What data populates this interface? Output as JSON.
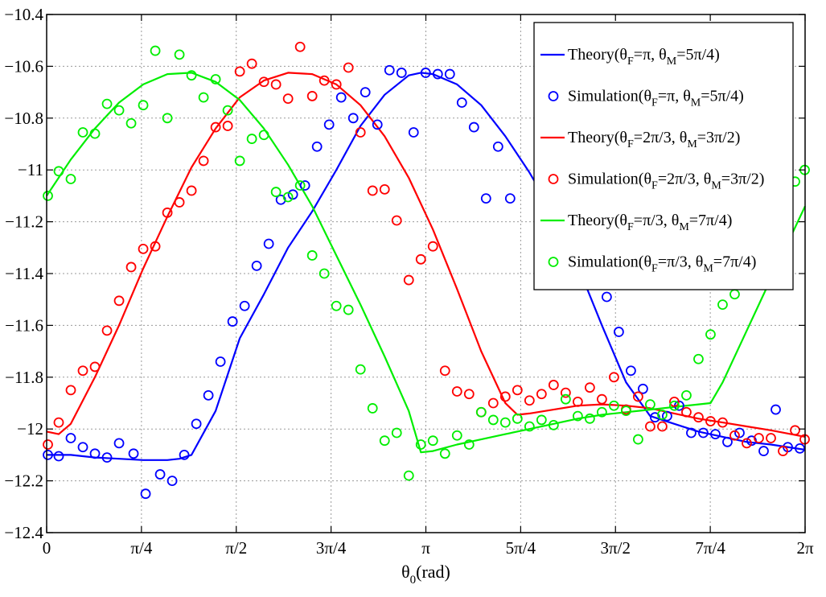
{
  "chart_data": {
    "type": "line",
    "title": "",
    "xlabel": "θ",
    "xlabel_sub": "0",
    "xlabel_unit": "(rad)",
    "ylabel": "",
    "xlim": [
      0,
      6.2832
    ],
    "ylim": [
      -12.4,
      -10.4
    ],
    "grid": true,
    "legend_position": "top-right",
    "x_ticks": [
      {
        "value": 0,
        "label": "0"
      },
      {
        "value": 0.7854,
        "label": "π/4"
      },
      {
        "value": 1.5708,
        "label": "π/2"
      },
      {
        "value": 2.3562,
        "label": "3π/4"
      },
      {
        "value": 3.1416,
        "label": "π"
      },
      {
        "value": 3.927,
        "label": "5π/4"
      },
      {
        "value": 4.7124,
        "label": "3π/2"
      },
      {
        "value": 5.4978,
        "label": "7π/4"
      },
      {
        "value": 6.2832,
        "label": "2π"
      }
    ],
    "y_ticks": [
      {
        "value": -10.4,
        "label": "−10.4"
      },
      {
        "value": -10.6,
        "label": "−10.6"
      },
      {
        "value": -10.8,
        "label": "−10.8"
      },
      {
        "value": -11.0,
        "label": "−11"
      },
      {
        "value": -11.2,
        "label": "−11.2"
      },
      {
        "value": -11.4,
        "label": "−11.4"
      },
      {
        "value": -11.6,
        "label": "−11.6"
      },
      {
        "value": -11.8,
        "label": "−11.8"
      },
      {
        "value": -12.0,
        "label": "−12"
      },
      {
        "value": -12.2,
        "label": "−12.2"
      },
      {
        "value": -12.4,
        "label": "−12.4"
      }
    ],
    "colors": {
      "blue": "#0000ff",
      "red": "#ff0000",
      "green": "#00ee00"
    },
    "series": [
      {
        "name": "Theory(θF=π, θM=5π/4)",
        "legend": {
          "pre": "Theory(θ",
          "s1": "F",
          "mid": "=π, θ",
          "s2": "M",
          "post": "=5π/4)"
        },
        "kind": "line",
        "color": "#0000ff",
        "x": [
          0,
          0.2,
          0.4,
          0.6,
          0.8,
          1.0,
          1.1,
          1.2,
          1.4,
          1.6,
          1.8,
          2.0,
          2.2,
          2.4,
          2.6,
          2.8,
          3.0,
          3.1,
          3.2,
          3.4,
          3.6,
          3.8,
          4.0,
          4.2,
          4.4,
          4.6,
          4.8,
          5.0,
          5.2,
          5.4,
          5.6,
          5.8,
          6.0,
          6.2832
        ],
        "y": [
          -12.1,
          -12.1,
          -12.11,
          -12.115,
          -12.12,
          -12.12,
          -12.115,
          -12.1,
          -11.93,
          -11.65,
          -11.48,
          -11.3,
          -11.16,
          -11.0,
          -10.83,
          -10.71,
          -10.635,
          -10.625,
          -10.63,
          -10.67,
          -10.75,
          -10.87,
          -11.01,
          -11.17,
          -11.37,
          -11.6,
          -11.82,
          -11.95,
          -11.98,
          -12.01,
          -12.03,
          -12.05,
          -12.06,
          -12.08
        ]
      },
      {
        "name": "Simulation(θF=π, θM=5π/4)",
        "legend": {
          "pre": "Simulation(θ",
          "s1": "F",
          "mid": "=π, θ",
          "s2": "M",
          "post": "=5π/4)"
        },
        "kind": "scatter",
        "color": "#0000ff",
        "x": [
          0.01,
          0.1,
          0.2,
          0.3,
          0.4,
          0.5,
          0.6,
          0.72,
          0.82,
          0.94,
          1.04,
          1.14,
          1.24,
          1.34,
          1.44,
          1.54,
          1.64,
          1.74,
          1.84,
          1.94,
          2.04,
          2.14,
          2.24,
          2.34,
          2.44,
          2.54,
          2.64,
          2.74,
          2.84,
          2.94,
          3.04,
          3.14,
          3.24,
          3.34,
          3.44,
          3.54,
          3.64,
          3.74,
          3.84,
          4.64,
          4.74,
          4.84,
          4.94,
          5.04,
          5.14,
          5.24,
          5.34,
          5.44,
          5.54,
          5.64,
          5.74,
          5.84,
          5.94,
          6.04,
          6.14,
          6.24
        ],
        "y": [
          -12.1,
          -12.105,
          -12.035,
          -12.07,
          -12.095,
          -12.11,
          -12.055,
          -12.095,
          -12.25,
          -12.175,
          -12.2,
          -12.1,
          -11.98,
          -11.87,
          -11.74,
          -11.585,
          -11.525,
          -11.37,
          -11.285,
          -11.115,
          -11.095,
          -11.06,
          -10.91,
          -10.825,
          -10.72,
          -10.8,
          -10.7,
          -10.825,
          -10.615,
          -10.625,
          -10.855,
          -10.625,
          -10.63,
          -10.63,
          -10.74,
          -10.835,
          -11.11,
          -10.91,
          -11.11,
          -11.49,
          -11.625,
          -11.775,
          -11.845,
          -11.955,
          -11.95,
          -11.91,
          -12.015,
          -12.015,
          -12.02,
          -12.05,
          -12.015,
          -12.045,
          -12.085,
          -11.925,
          -12.07,
          -12.075
        ]
      },
      {
        "name": "Theory(θF=2π/3, θM=3π/2)",
        "legend": {
          "pre": "Theory(θ",
          "s1": "F",
          "mid": "=2π/3, θ",
          "s2": "M",
          "post": "=3π/2)"
        },
        "kind": "line",
        "color": "#ff0000",
        "x": [
          0,
          0.1,
          0.2,
          0.4,
          0.6,
          0.8,
          1.0,
          1.2,
          1.4,
          1.6,
          1.8,
          2.0,
          2.2,
          2.4,
          2.6,
          2.8,
          3.0,
          3.2,
          3.4,
          3.6,
          3.8,
          3.9,
          4.0,
          4.2,
          4.4,
          4.6,
          4.8,
          5.0,
          5.2,
          5.4,
          5.6,
          5.8,
          6.0,
          6.2832
        ],
        "y": [
          -12.01,
          -12.02,
          -11.98,
          -11.8,
          -11.6,
          -11.38,
          -11.18,
          -10.99,
          -10.84,
          -10.72,
          -10.655,
          -10.625,
          -10.63,
          -10.67,
          -10.75,
          -10.87,
          -11.03,
          -11.23,
          -11.46,
          -11.7,
          -11.9,
          -11.945,
          -11.94,
          -11.925,
          -11.91,
          -11.905,
          -11.91,
          -11.92,
          -11.94,
          -11.96,
          -11.975,
          -11.99,
          -12.005,
          -12.03
        ]
      },
      {
        "name": "Simulation(θF=2π/3, θM=3π/2)",
        "legend": {
          "pre": "Simulation(θ",
          "s1": "F",
          "mid": "=2π/3, θ",
          "s2": "M",
          "post": "=3π/2)"
        },
        "kind": "scatter",
        "color": "#ff0000",
        "x": [
          0.01,
          0.1,
          0.2,
          0.3,
          0.4,
          0.5,
          0.6,
          0.7,
          0.8,
          0.9,
          1.0,
          1.1,
          1.2,
          1.3,
          1.4,
          1.5,
          1.6,
          1.7,
          1.8,
          1.9,
          2.0,
          2.1,
          2.2,
          2.3,
          2.4,
          2.5,
          2.6,
          2.7,
          2.8,
          2.9,
          3.0,
          3.1,
          3.2,
          3.3,
          3.4,
          3.5,
          3.6,
          3.7,
          3.8,
          3.9,
          4.0,
          4.1,
          4.2,
          4.3,
          4.4,
          4.5,
          4.6,
          4.7,
          4.8,
          4.9,
          5.0,
          5.1,
          5.2,
          5.3,
          5.4,
          5.5,
          5.6,
          5.7,
          5.8,
          5.9,
          6.0,
          6.1,
          6.2,
          6.28
        ],
        "y": [
          -12.06,
          -11.975,
          -11.85,
          -11.775,
          -11.76,
          -11.62,
          -11.505,
          -11.375,
          -11.305,
          -11.295,
          -11.165,
          -11.125,
          -11.08,
          -10.965,
          -10.835,
          -10.83,
          -10.62,
          -10.59,
          -10.66,
          -10.67,
          -10.725,
          -10.525,
          -10.715,
          -10.655,
          -10.67,
          -10.605,
          -10.855,
          -11.08,
          -11.075,
          -11.195,
          -11.425,
          -11.345,
          -11.295,
          -11.775,
          -11.855,
          -11.865,
          -11.935,
          -11.9,
          -11.875,
          -11.85,
          -11.89,
          -11.865,
          -11.83,
          -11.86,
          -11.895,
          -11.84,
          -11.885,
          -11.8,
          -11.925,
          -11.875,
          -11.99,
          -11.99,
          -11.895,
          -11.935,
          -11.955,
          -11.97,
          -11.975,
          -12.025,
          -12.055,
          -12.035,
          -12.035,
          -12.085,
          -12.005,
          -12.04
        ]
      },
      {
        "name": "Theory(θF=π/3, θM=7π/4)",
        "legend": {
          "pre": "Theory(θ",
          "s1": "F",
          "mid": "=π/3, θ",
          "s2": "M",
          "post": "=7π/4)"
        },
        "kind": "line",
        "color": "#00ee00",
        "x": [
          0,
          0.2,
          0.4,
          0.6,
          0.8,
          1.0,
          1.2,
          1.4,
          1.6,
          1.8,
          2.0,
          2.2,
          2.4,
          2.6,
          2.8,
          3.0,
          3.1,
          3.2,
          3.4,
          3.6,
          3.8,
          4.0,
          4.2,
          4.4,
          4.6,
          4.8,
          5.0,
          5.2,
          5.4,
          5.5,
          5.6,
          5.8,
          6.0,
          6.2832
        ],
        "y": [
          -11.1,
          -10.96,
          -10.84,
          -10.74,
          -10.67,
          -10.63,
          -10.625,
          -10.66,
          -10.73,
          -10.84,
          -10.98,
          -11.14,
          -11.33,
          -11.52,
          -11.72,
          -11.93,
          -12.09,
          -12.085,
          -12.06,
          -12.04,
          -12.02,
          -12.0,
          -11.98,
          -11.96,
          -11.945,
          -11.935,
          -11.925,
          -11.915,
          -11.905,
          -11.9,
          -11.82,
          -11.62,
          -11.42,
          -11.14
        ]
      },
      {
        "name": "Simulation(θF=π/3, θM=7π/4)",
        "legend": {
          "pre": "Simulation(θ",
          "s1": "F",
          "mid": "=π/3, θ",
          "s2": "M",
          "post": "=7π/4)"
        },
        "kind": "scatter",
        "color": "#00ee00",
        "x": [
          0.01,
          0.1,
          0.2,
          0.3,
          0.4,
          0.5,
          0.6,
          0.7,
          0.8,
          0.9,
          1.0,
          1.1,
          1.2,
          1.3,
          1.4,
          1.5,
          1.6,
          1.7,
          1.8,
          1.9,
          2.0,
          2.1,
          2.2,
          2.3,
          2.4,
          2.5,
          2.6,
          2.7,
          2.8,
          2.9,
          3.0,
          3.1,
          3.2,
          3.3,
          3.4,
          3.5,
          3.6,
          3.7,
          3.8,
          3.9,
          4.0,
          4.1,
          4.2,
          4.3,
          4.4,
          4.5,
          4.6,
          4.7,
          4.8,
          4.9,
          5.0,
          5.1,
          5.2,
          5.3,
          5.4,
          5.5,
          5.6,
          5.7,
          5.8,
          5.9,
          6.0,
          6.1,
          6.2,
          6.28
        ],
        "y": [
          -11.1,
          -11.005,
          -11.035,
          -10.855,
          -10.86,
          -10.745,
          -10.77,
          -10.82,
          -10.75,
          -10.54,
          -10.8,
          -10.555,
          -10.635,
          -10.72,
          -10.65,
          -10.77,
          -10.965,
          -10.88,
          -10.865,
          -11.085,
          -11.105,
          -11.06,
          -11.33,
          -11.4,
          -11.525,
          -11.54,
          -11.77,
          -11.92,
          -12.045,
          -12.015,
          -12.18,
          -12.06,
          -12.045,
          -12.095,
          -12.025,
          -12.06,
          -11.935,
          -11.965,
          -11.975,
          -11.96,
          -11.99,
          -11.965,
          -11.985,
          -11.885,
          -11.95,
          -11.96,
          -11.935,
          -11.91,
          -11.93,
          -12.04,
          -11.905,
          -11.945,
          -11.91,
          -11.87,
          -11.73,
          -11.635,
          -11.52,
          -11.48,
          -11.32,
          -11.25,
          -11.155,
          -11.09,
          -11.045,
          -11.0
        ]
      }
    ]
  }
}
